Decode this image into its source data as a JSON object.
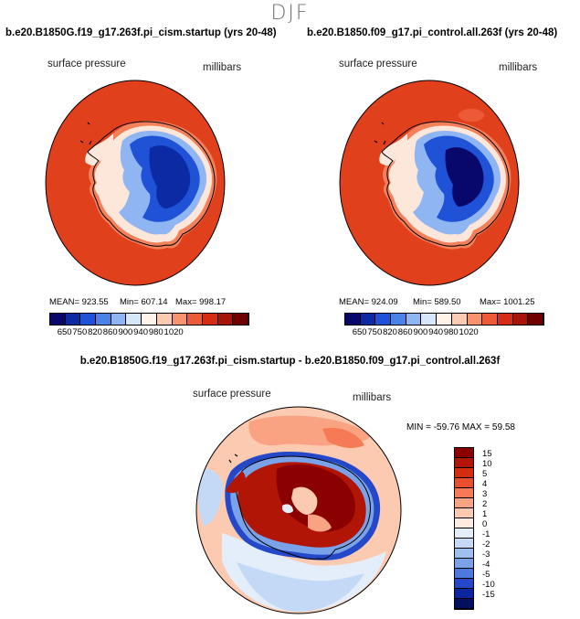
{
  "title": "DJF",
  "panels": [
    {
      "case": "b.e20.B1850G.f19_g17.263f.pi_cism.startup (yrs 20-48)",
      "variable": "surface pressure",
      "units": "millibars",
      "stats": {
        "mean": "MEAN= 923.55",
        "min": "Min= 607.14",
        "max": "Max= 998.17"
      }
    },
    {
      "case": "b.e20.B1850.f09_g17.pi_control.all.263f (yrs 20-48)",
      "variable": "surface pressure",
      "units": "millibars",
      "stats": {
        "mean": "MEAN= 924.09",
        "min": "Min= 589.50",
        "max": "Max= 1001.25"
      }
    }
  ],
  "absolute_colorbar": {
    "labels": [
      "650",
      "750",
      "820",
      "860",
      "900",
      "940",
      "980",
      "1020"
    ],
    "colors": [
      "#08086b",
      "#0b2aa3",
      "#1f52d6",
      "#4a82e8",
      "#8fb6f2",
      "#d6e6fb",
      "#fff3ea",
      "#fccbb1",
      "#f7946e",
      "#ec5a38",
      "#d42c15",
      "#a81408",
      "#700000"
    ]
  },
  "difference": {
    "title": "b.e20.B1850G.f19_g17.263f.pi_cism.startup - b.e20.B1850.f09_g17.pi_control.all.263f",
    "variable": "surface pressure",
    "units": "millibars",
    "stats": "MIN = -59.76 MAX =  59.58",
    "colorbar": {
      "labels": [
        "15",
        "10",
        "5",
        "4",
        "3",
        "2",
        "1",
        "0",
        "-1",
        "-2",
        "-3",
        "-4",
        "-5",
        "-10",
        "-15"
      ],
      "colors": [
        "#8b0000",
        "#b01505",
        "#d42c10",
        "#e95030",
        "#f57a55",
        "#f9a383",
        "#fccab1",
        "#feebe0",
        "#e4eefb",
        "#c4d9f6",
        "#9fbff0",
        "#7aa2e8",
        "#4e78e0",
        "#2448c8",
        "#0b249f",
        "#03105e"
      ]
    }
  }
}
